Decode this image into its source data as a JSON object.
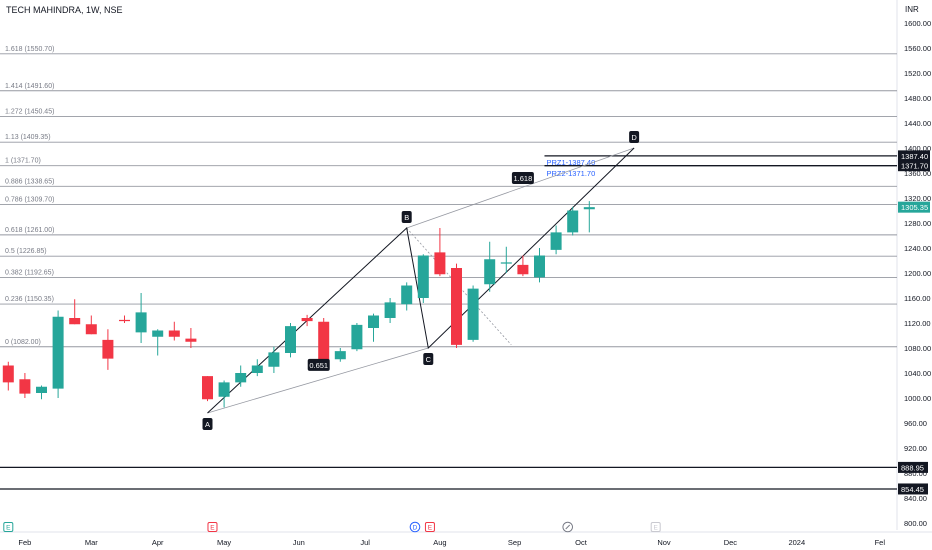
{
  "header": {
    "title": "TECH MAHINDRA, 1W, NSE",
    "currency": "INR"
  },
  "colors": {
    "up": "#26a69a",
    "down": "#f23645",
    "grid": "#d1d4dc",
    "text": "#131722",
    "label": "#787b86"
  },
  "chart_data": {
    "type": "candlestick",
    "y_axis": {
      "min": 800,
      "max": 1620,
      "ticks": [
        800,
        840,
        880,
        920,
        960,
        1000,
        1040,
        1080,
        1120,
        1160,
        1200,
        1240,
        1280,
        1320,
        1360,
        1400,
        1440,
        1480,
        1520,
        1560,
        1600
      ]
    },
    "x_axis": {
      "labels": [
        {
          "label": "Feb",
          "week": 1.5
        },
        {
          "label": "Mar",
          "week": 5.5
        },
        {
          "label": "Apr",
          "week": 9.5
        },
        {
          "label": "May",
          "week": 13.5
        },
        {
          "label": "Jun",
          "week": 18
        },
        {
          "label": "Jul",
          "week": 22
        },
        {
          "label": "Aug",
          "week": 26.5
        },
        {
          "label": "Sep",
          "week": 31
        },
        {
          "label": "Oct",
          "week": 35
        },
        {
          "label": "Nov",
          "week": 40
        },
        {
          "label": "Dec",
          "week": 44
        },
        {
          "label": "2024",
          "week": 48
        },
        {
          "label": "Fel",
          "week": 53
        }
      ]
    },
    "candles": [
      {
        "o": 1052,
        "h": 1058,
        "l": 1012,
        "c": 1025
      },
      {
        "o": 1030,
        "h": 1040,
        "l": 1000,
        "c": 1007
      },
      {
        "o": 1008,
        "h": 1020,
        "l": 998,
        "c": 1018
      },
      {
        "o": 1015,
        "h": 1140,
        "l": 1000,
        "c": 1130
      },
      {
        "o": 1128,
        "h": 1158,
        "l": 1118,
        "c": 1118
      },
      {
        "o": 1118,
        "h": 1132,
        "l": 1102,
        "c": 1102
      },
      {
        "o": 1093,
        "h": 1110,
        "l": 1045,
        "c": 1063
      },
      {
        "o": 1125,
        "h": 1132,
        "l": 1120,
        "c": 1123
      },
      {
        "o": 1105,
        "h": 1168,
        "l": 1088,
        "c": 1137
      },
      {
        "o": 1098,
        "h": 1110,
        "l": 1068,
        "c": 1108
      },
      {
        "o": 1108,
        "h": 1122,
        "l": 1092,
        "c": 1098
      },
      {
        "o": 1095,
        "h": 1112,
        "l": 1080,
        "c": 1090
      },
      {
        "o": 1035,
        "h": 1035,
        "l": 995,
        "c": 998
      },
      {
        "o": 1002,
        "h": 1028,
        "l": 985,
        "c": 1025
      },
      {
        "o": 1025,
        "h": 1052,
        "l": 1018,
        "c": 1040
      },
      {
        "o": 1040,
        "h": 1062,
        "l": 1035,
        "c": 1052
      },
      {
        "o": 1050,
        "h": 1082,
        "l": 1040,
        "c": 1073
      },
      {
        "o": 1072,
        "h": 1120,
        "l": 1065,
        "c": 1115
      },
      {
        "o": 1128,
        "h": 1133,
        "l": 1115,
        "c": 1123
      },
      {
        "o": 1122,
        "h": 1128,
        "l": 1060,
        "c": 1062
      },
      {
        "o": 1062,
        "h": 1080,
        "l": 1058,
        "c": 1075
      },
      {
        "o": 1078,
        "h": 1120,
        "l": 1075,
        "c": 1117
      },
      {
        "o": 1112,
        "h": 1135,
        "l": 1090,
        "c": 1132
      },
      {
        "o": 1128,
        "h": 1160,
        "l": 1120,
        "c": 1153
      },
      {
        "o": 1150,
        "h": 1185,
        "l": 1140,
        "c": 1180
      },
      {
        "o": 1160,
        "h": 1230,
        "l": 1152,
        "c": 1228
      },
      {
        "o": 1233,
        "h": 1272,
        "l": 1195,
        "c": 1198
      },
      {
        "o": 1208,
        "h": 1215,
        "l": 1080,
        "c": 1085
      },
      {
        "o": 1093,
        "h": 1180,
        "l": 1090,
        "c": 1175
      },
      {
        "o": 1182,
        "h": 1250,
        "l": 1170,
        "c": 1222
      },
      {
        "o": 1215,
        "h": 1242,
        "l": 1200,
        "c": 1217
      },
      {
        "o": 1213,
        "h": 1228,
        "l": 1195,
        "c": 1198
      },
      {
        "o": 1193,
        "h": 1240,
        "l": 1185,
        "c": 1228
      },
      {
        "o": 1237,
        "h": 1276,
        "l": 1230,
        "c": 1265
      },
      {
        "o": 1265,
        "h": 1306,
        "l": 1260,
        "c": 1300
      },
      {
        "o": 1302,
        "h": 1315,
        "l": 1265,
        "c": 1305.35
      }
    ],
    "fib_levels": [
      {
        "label": "0 (1082.00)",
        "value": 1082.0
      },
      {
        "label": "0.236 (1150.35)",
        "value": 1150.35
      },
      {
        "label": "0.382 (1192.65)",
        "value": 1192.65
      },
      {
        "label": "0.5 (1226.85)",
        "value": 1226.85
      },
      {
        "label": "0.618 (1261.00)",
        "value": 1261.0
      },
      {
        "label": "0.786 (1309.70)",
        "value": 1309.7
      },
      {
        "label": "0.886 (1338.65)",
        "value": 1338.65
      },
      {
        "label": "1 (1371.70)",
        "value": 1371.7
      },
      {
        "label": "1.13 (1409.35)",
        "value": 1409.35
      },
      {
        "label": "1.272 (1450.45)",
        "value": 1450.45
      },
      {
        "label": "1.414 (1491.60)",
        "value": 1491.6
      },
      {
        "label": "1.618 (1550.70)",
        "value": 1550.7
      }
    ],
    "horizontal_lines": [
      {
        "value": 888.95,
        "label": "888.95"
      },
      {
        "value": 854.45,
        "label": "854.45"
      }
    ],
    "price_badges": [
      {
        "value": 1387.4,
        "label": "1387.40",
        "style": "dark"
      },
      {
        "value": 1371.7,
        "label": "1371.70",
        "style": "dark"
      },
      {
        "value": 1305.35,
        "label": "1305.35",
        "style": "up"
      }
    ],
    "prz": {
      "lines": [
        {
          "value": 1387.4,
          "start_week": 32.8
        },
        {
          "value": 1371.7,
          "start_week": 32.8
        }
      ],
      "labels": [
        "PRZ1-1387.40",
        "PRZ2-1371.70"
      ]
    },
    "pattern_points": [
      {
        "name": "A",
        "week": 12.5,
        "value": 976
      },
      {
        "name": "B",
        "week": 24.5,
        "value": 1272
      },
      {
        "name": "C",
        "week": 25.8,
        "value": 1080
      },
      {
        "name": "D",
        "week": 38.2,
        "value": 1400
      }
    ],
    "ratio_labels": [
      {
        "label": "0.651",
        "week": 19.2,
        "value": 1053
      },
      {
        "label": "1.618",
        "week": 31.5,
        "value": 1352
      }
    ],
    "event_markers": [
      {
        "type": "E",
        "week": 0.5,
        "color": "#26a69a"
      },
      {
        "type": "E",
        "week": 12.8,
        "color": "#f23645"
      },
      {
        "type": "D",
        "week": 25.0,
        "color": "#2962ff"
      },
      {
        "type": "E",
        "week": 25.9,
        "color": "#f23645"
      },
      {
        "type": "split",
        "week": 34.2,
        "color": "#787b86"
      },
      {
        "type": "E",
        "week": 39.5,
        "color": "#c9c9d0"
      }
    ]
  }
}
